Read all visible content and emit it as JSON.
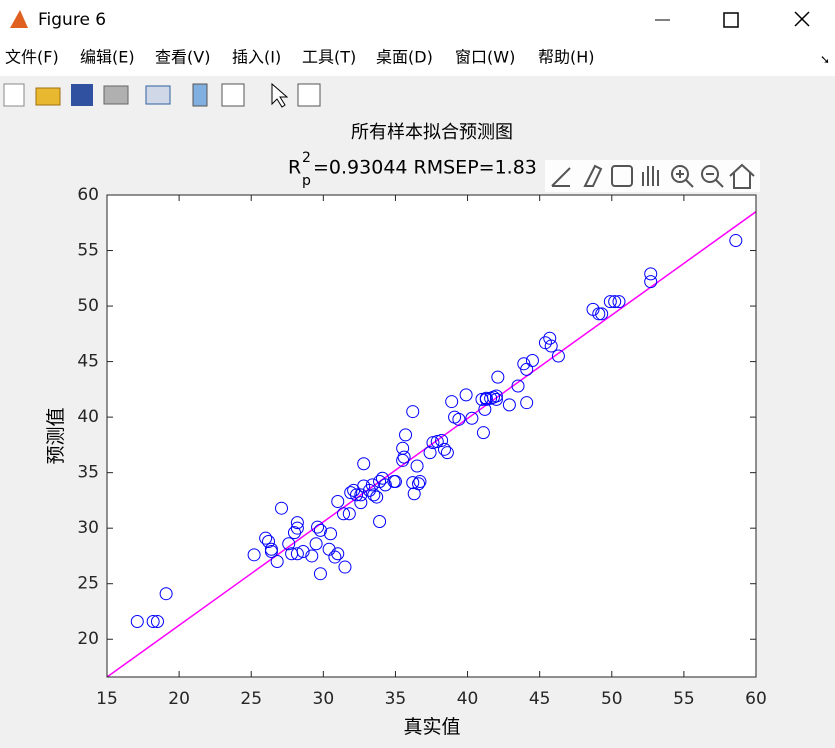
{
  "window": {
    "title": "Figure 6",
    "menu": [
      "文件(F)",
      "编辑(E)",
      "查看(V)",
      "插入(I)",
      "工具(T)",
      "桌面(D)",
      "窗口(W)",
      "帮助(H)"
    ]
  },
  "chart_data": {
    "type": "scatter",
    "title": "所有样本拟合预测图",
    "subtitle": {
      "base": "R",
      "sup": "2",
      "sub": "p",
      "text": "=0.93044  RMSEP=1.83"
    },
    "x_label": "真实值",
    "y_label": "预测值",
    "xlim": [
      15,
      60
    ],
    "ylim": [
      16.6,
      60
    ],
    "xticks": [
      15,
      20,
      25,
      30,
      35,
      40,
      45,
      50,
      55,
      60
    ],
    "yticks": [
      20,
      25,
      30,
      35,
      40,
      45,
      50,
      55,
      60
    ],
    "color": "#0000ff",
    "x": [
      17.1,
      18.2,
      18.5,
      19.1,
      25.2,
      26.0,
      26.2,
      26.4,
      26.4,
      26.8,
      27.1,
      27.6,
      27.8,
      28.0,
      28.2,
      28.2,
      28.2,
      28.6,
      29.2,
      29.5,
      29.6,
      29.8,
      29.8,
      30.4,
      30.5,
      30.8,
      31.0,
      31.0,
      31.4,
      31.5,
      31.8,
      31.9,
      32.1,
      32.3,
      32.6,
      32.6,
      32.8,
      32.8,
      33.2,
      33.4,
      33.5,
      33.7,
      33.9,
      33.9,
      34.1,
      34.3,
      34.9,
      35.0,
      35.5,
      35.5,
      35.6,
      35.7,
      36.2,
      36.2,
      36.3,
      36.5,
      36.6,
      36.7,
      37.4,
      37.6,
      37.9,
      38.2,
      38.4,
      38.6,
      38.9,
      39.1,
      39.4,
      39.9,
      40.3,
      41.0,
      41.1,
      41.2,
      41.3,
      41.3,
      41.6,
      41.8,
      42.0,
      42.0,
      42.1,
      42.9,
      43.5,
      43.9,
      44.1,
      44.1,
      44.5,
      45.4,
      45.7,
      45.8,
      46.3,
      48.7,
      49.1,
      49.3,
      49.9,
      50.2,
      50.5,
      52.7,
      52.7,
      58.6
    ],
    "values": [
      21.6,
      21.6,
      21.6,
      24.1,
      27.6,
      29.1,
      28.8,
      28.1,
      27.9,
      27.0,
      31.8,
      28.6,
      27.7,
      29.6,
      30.5,
      30.0,
      27.7,
      27.9,
      27.5,
      28.6,
      30.1,
      25.9,
      29.8,
      28.1,
      29.5,
      27.4,
      27.7,
      32.4,
      31.3,
      26.5,
      31.3,
      33.2,
      33.4,
      33.0,
      32.3,
      33.0,
      33.8,
      35.8,
      33.4,
      33.9,
      33.0,
      32.8,
      30.6,
      34.2,
      34.5,
      33.9,
      34.2,
      34.2,
      36.1,
      37.2,
      36.4,
      38.4,
      40.5,
      34.1,
      33.1,
      35.6,
      34.0,
      34.2,
      36.8,
      37.7,
      37.8,
      37.9,
      37.1,
      36.8,
      41.4,
      40.0,
      39.8,
      42.0,
      39.9,
      41.6,
      38.6,
      40.7,
      41.6,
      41.7,
      41.7,
      41.8,
      41.9,
      41.6,
      43.6,
      41.1,
      42.8,
      44.8,
      41.3,
      44.3,
      45.1,
      46.7,
      47.1,
      46.4,
      45.5,
      49.7,
      49.3,
      49.3,
      50.4,
      50.4,
      50.4,
      52.9,
      52.2,
      55.9
    ],
    "fit_line": {
      "x": [
        15,
        60
      ],
      "values": [
        16.6,
        58.5
      ],
      "color": "#ff00ff"
    }
  }
}
